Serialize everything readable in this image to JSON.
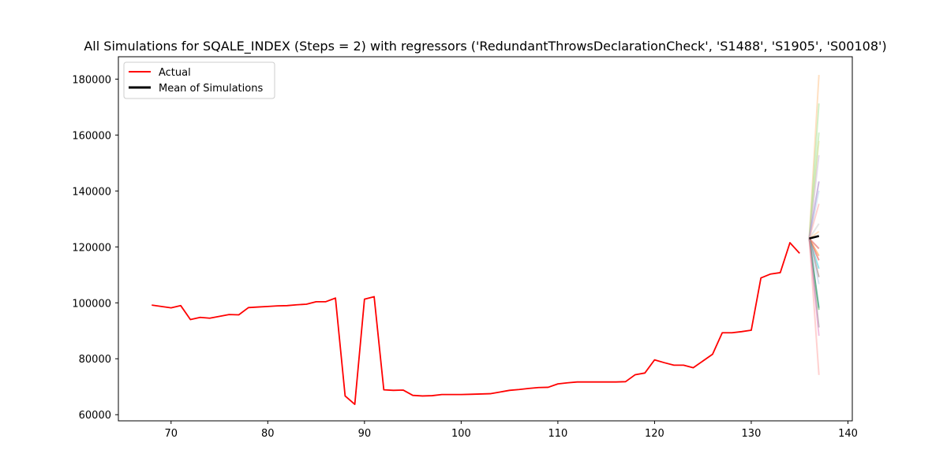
{
  "chart_data": {
    "type": "line",
    "title": "All Simulations for SQALE_INDEX (Steps = 2) with regressors ('RedundantThrowsDeclarationCheck', 'S1488', 'S1905', 'S00108')",
    "xlabel": "",
    "ylabel": "",
    "xlim": [
      64.55,
      140.45
    ],
    "ylim": [
      57800,
      188000
    ],
    "x_ticks": [
      70,
      80,
      90,
      100,
      110,
      120,
      130,
      140
    ],
    "y_ticks": [
      60000,
      80000,
      100000,
      120000,
      140000,
      160000,
      180000
    ],
    "grid": false,
    "legend_position": "top-left",
    "series": [
      {
        "name": "Actual",
        "color": "#ff0000",
        "x": [
          68,
          70,
          71,
          72,
          73,
          74,
          76,
          77,
          78,
          79,
          80,
          81,
          82,
          83,
          84,
          85,
          86,
          87,
          88,
          89,
          90,
          91,
          92,
          93,
          94,
          95,
          96,
          97,
          98,
          99,
          100,
          101,
          102,
          103,
          104,
          105,
          106,
          107,
          108,
          109,
          110,
          111,
          112,
          113,
          114,
          115,
          116,
          117,
          118,
          119,
          120,
          121,
          122,
          123,
          124,
          126,
          127,
          128,
          129,
          130,
          131,
          132,
          133,
          134,
          135
        ],
        "values": [
          99200,
          98200,
          99000,
          94000,
          94800,
          94500,
          95800,
          95700,
          98300,
          98500,
          98700,
          98900,
          99000,
          99300,
          99500,
          100400,
          100400,
          101700,
          66700,
          63700,
          101300,
          102200,
          68900,
          68700,
          68800,
          66900,
          66700,
          66800,
          67200,
          67200,
          67200,
          67300,
          67400,
          67500,
          68100,
          68700,
          69000,
          69400,
          69700,
          69800,
          71000,
          71400,
          71700,
          71700,
          71700,
          71700,
          71700,
          71800,
          74300,
          74900,
          79600,
          78600,
          77700,
          77700,
          76800,
          81600,
          89300,
          89300,
          89700,
          90200,
          108900,
          110300,
          110800,
          121500,
          117700
        ]
      },
      {
        "name": "Mean of Simulations",
        "color": "#000000",
        "x": [
          136,
          137
        ],
        "values": [
          123000,
          123900
        ]
      }
    ],
    "simulations": {
      "start": {
        "x": 136,
        "y": 123000
      },
      "end_x": 137,
      "end_values": [
        181500,
        171300,
        160900,
        157900,
        152800,
        143400,
        140100,
        135400,
        128300,
        125500,
        119400,
        116800,
        115200,
        112200,
        109200,
        106700,
        98200,
        97500,
        91200,
        88200,
        74200
      ],
      "colors": [
        "#ffbb78",
        "#98df8a",
        "#98df8a",
        "#dbdb8d",
        "#c5b0d5",
        "#9467bd",
        "#aec7e8",
        "#ff9896",
        "#c7c7c7",
        "#ffbb78",
        "#d62728",
        "#ff7f0e",
        "#d62728",
        "#17becf",
        "#8c564b",
        "#aec7e8",
        "#1f77b4",
        "#2ca02c",
        "#7f7f7f",
        "#e377c2",
        "#ff9896"
      ]
    }
  }
}
